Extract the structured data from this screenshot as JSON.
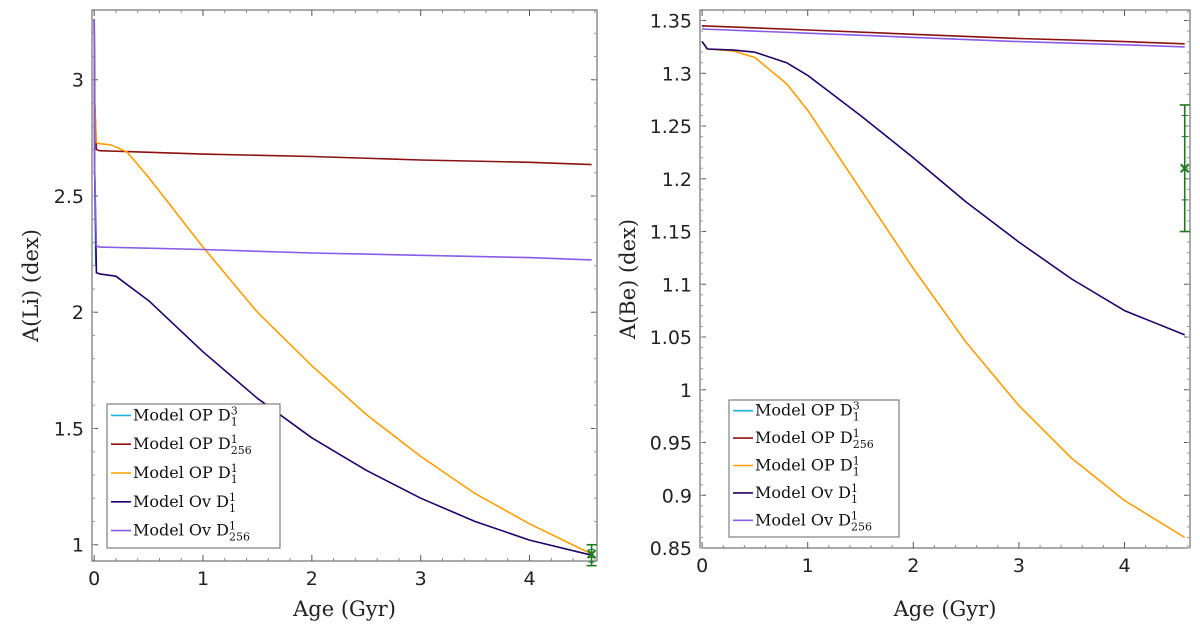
{
  "chart_data": [
    {
      "type": "line",
      "panel": "left",
      "xlabel": "Age (Gyr)",
      "ylabel": "A(Li) (dex)",
      "xlim": [
        -0.02,
        4.62
      ],
      "ylim": [
        0.93,
        3.3
      ],
      "xticks": [
        0,
        1,
        2,
        3,
        4
      ],
      "xtick_labels": [
        "0",
        "1",
        "2",
        "3",
        "4"
      ],
      "yticks": [
        1,
        1.5,
        2,
        2.5,
        3
      ],
      "ytick_labels": [
        "1",
        "1.5",
        "2",
        "2.5",
        "3"
      ],
      "legend_position": "bottom-left",
      "series": [
        {
          "name": "Model OP D",
          "sup": "3",
          "sub": "1",
          "color": "#1ab5d9",
          "x": [
            0,
            0.005,
            0.015
          ],
          "y": [
            3.26,
            2.6,
            2.2
          ]
        },
        {
          "name": "Model OP D",
          "sup": "1",
          "sub": "256",
          "color": "#8b1111",
          "x": [
            0,
            0.005,
            0.02,
            0.05,
            1,
            2,
            3,
            4,
            4.57
          ],
          "y": [
            3.26,
            2.9,
            2.7,
            2.695,
            2.68,
            2.67,
            2.655,
            2.645,
            2.635
          ]
        },
        {
          "name": "Model OP D",
          "sup": "1",
          "sub": "1",
          "color": "#ff9d00",
          "x": [
            0,
            0.005,
            0.02,
            0.05,
            0.15,
            0.3,
            0.5,
            1,
            1.5,
            2,
            2.5,
            3,
            3.5,
            4,
            4.57
          ],
          "y": [
            3.26,
            2.9,
            2.73,
            2.725,
            2.72,
            2.69,
            2.58,
            2.28,
            2.0,
            1.77,
            1.56,
            1.38,
            1.22,
            1.09,
            0.96
          ]
        },
        {
          "name": "Model Ov D",
          "sup": "1",
          "sub": "1",
          "color": "#22006a",
          "x": [
            0,
            0.005,
            0.02,
            0.05,
            0.2,
            0.5,
            1,
            1.5,
            2,
            2.5,
            3,
            3.5,
            4,
            4.57
          ],
          "y": [
            3.26,
            2.6,
            2.17,
            2.165,
            2.155,
            2.05,
            1.83,
            1.63,
            1.46,
            1.32,
            1.2,
            1.1,
            1.02,
            0.955
          ]
        },
        {
          "name": "Model Ov D",
          "sup": "1",
          "sub": "256",
          "color": "#8a5be8",
          "x": [
            0,
            0.005,
            0.02,
            0.05,
            1,
            2,
            3,
            4,
            4.57
          ],
          "y": [
            3.26,
            2.6,
            2.285,
            2.28,
            2.27,
            2.255,
            2.245,
            2.235,
            2.225
          ]
        }
      ],
      "observation": {
        "color": "#1e7a1e",
        "x": 4.57,
        "y": 0.96,
        "y_low": 0.91,
        "y_high": 1.0,
        "cap_ticks": [
          0.925,
          0.945,
          0.965,
          0.98
        ]
      }
    },
    {
      "type": "line",
      "panel": "right",
      "xlabel": "Age (Gyr)",
      "ylabel": "A(Be) (dex)",
      "xlim": [
        -0.02,
        4.62
      ],
      "ylim": [
        0.85,
        1.36
      ],
      "xticks": [
        0,
        1,
        2,
        3,
        4
      ],
      "xtick_labels": [
        "0",
        "1",
        "2",
        "3",
        "4"
      ],
      "yticks": [
        0.85,
        0.9,
        0.95,
        1,
        1.05,
        1.1,
        1.15,
        1.2,
        1.25,
        1.3,
        1.35
      ],
      "ytick_labels": [
        "0.85",
        "0.9",
        "0.95",
        "1",
        "1.05",
        "1.1",
        "1.15",
        "1.2",
        "1.25",
        "1.3",
        "1.35"
      ],
      "legend_position": "lower-left",
      "series": [
        {
          "name": "Model OP D",
          "sup": "3",
          "sub": "1",
          "color": "#1ab5d9",
          "x": [
            0,
            0.02
          ],
          "y": [
            1.345,
            1.344
          ]
        },
        {
          "name": "Model OP D",
          "sup": "1",
          "sub": "256",
          "color": "#8b1111",
          "x": [
            0,
            1,
            2,
            3,
            4,
            4.57
          ],
          "y": [
            1.345,
            1.341,
            1.337,
            1.333,
            1.33,
            1.328
          ]
        },
        {
          "name": "Model OP D",
          "sup": "1",
          "sub": "1",
          "color": "#ff9d00",
          "x": [
            0,
            0.05,
            0.3,
            0.5,
            0.8,
            1,
            1.5,
            2,
            2.5,
            3,
            3.5,
            4,
            4.57
          ],
          "y": [
            1.33,
            1.323,
            1.321,
            1.315,
            1.29,
            1.265,
            1.19,
            1.115,
            1.045,
            0.985,
            0.935,
            0.895,
            0.86
          ]
        },
        {
          "name": "Model Ov D",
          "sup": "1",
          "sub": "1",
          "color": "#22006a",
          "x": [
            0,
            0.05,
            0.3,
            0.5,
            0.8,
            1,
            1.5,
            2,
            2.5,
            3,
            3.5,
            4,
            4.57
          ],
          "y": [
            1.33,
            1.323,
            1.322,
            1.32,
            1.31,
            1.298,
            1.26,
            1.22,
            1.178,
            1.14,
            1.105,
            1.075,
            1.052
          ]
        },
        {
          "name": "Model Ov D",
          "sup": "1",
          "sub": "256",
          "color": "#8a5be8",
          "x": [
            0,
            1,
            2,
            3,
            4,
            4.57
          ],
          "y": [
            1.342,
            1.338,
            1.334,
            1.33,
            1.327,
            1.325
          ]
        }
      ],
      "observation": {
        "color": "#1e7a1e",
        "x": 4.57,
        "y": 1.21,
        "y_low": 1.15,
        "y_high": 1.27,
        "cap_ticks": [
          1.18,
          1.24,
          1.26
        ]
      }
    }
  ]
}
